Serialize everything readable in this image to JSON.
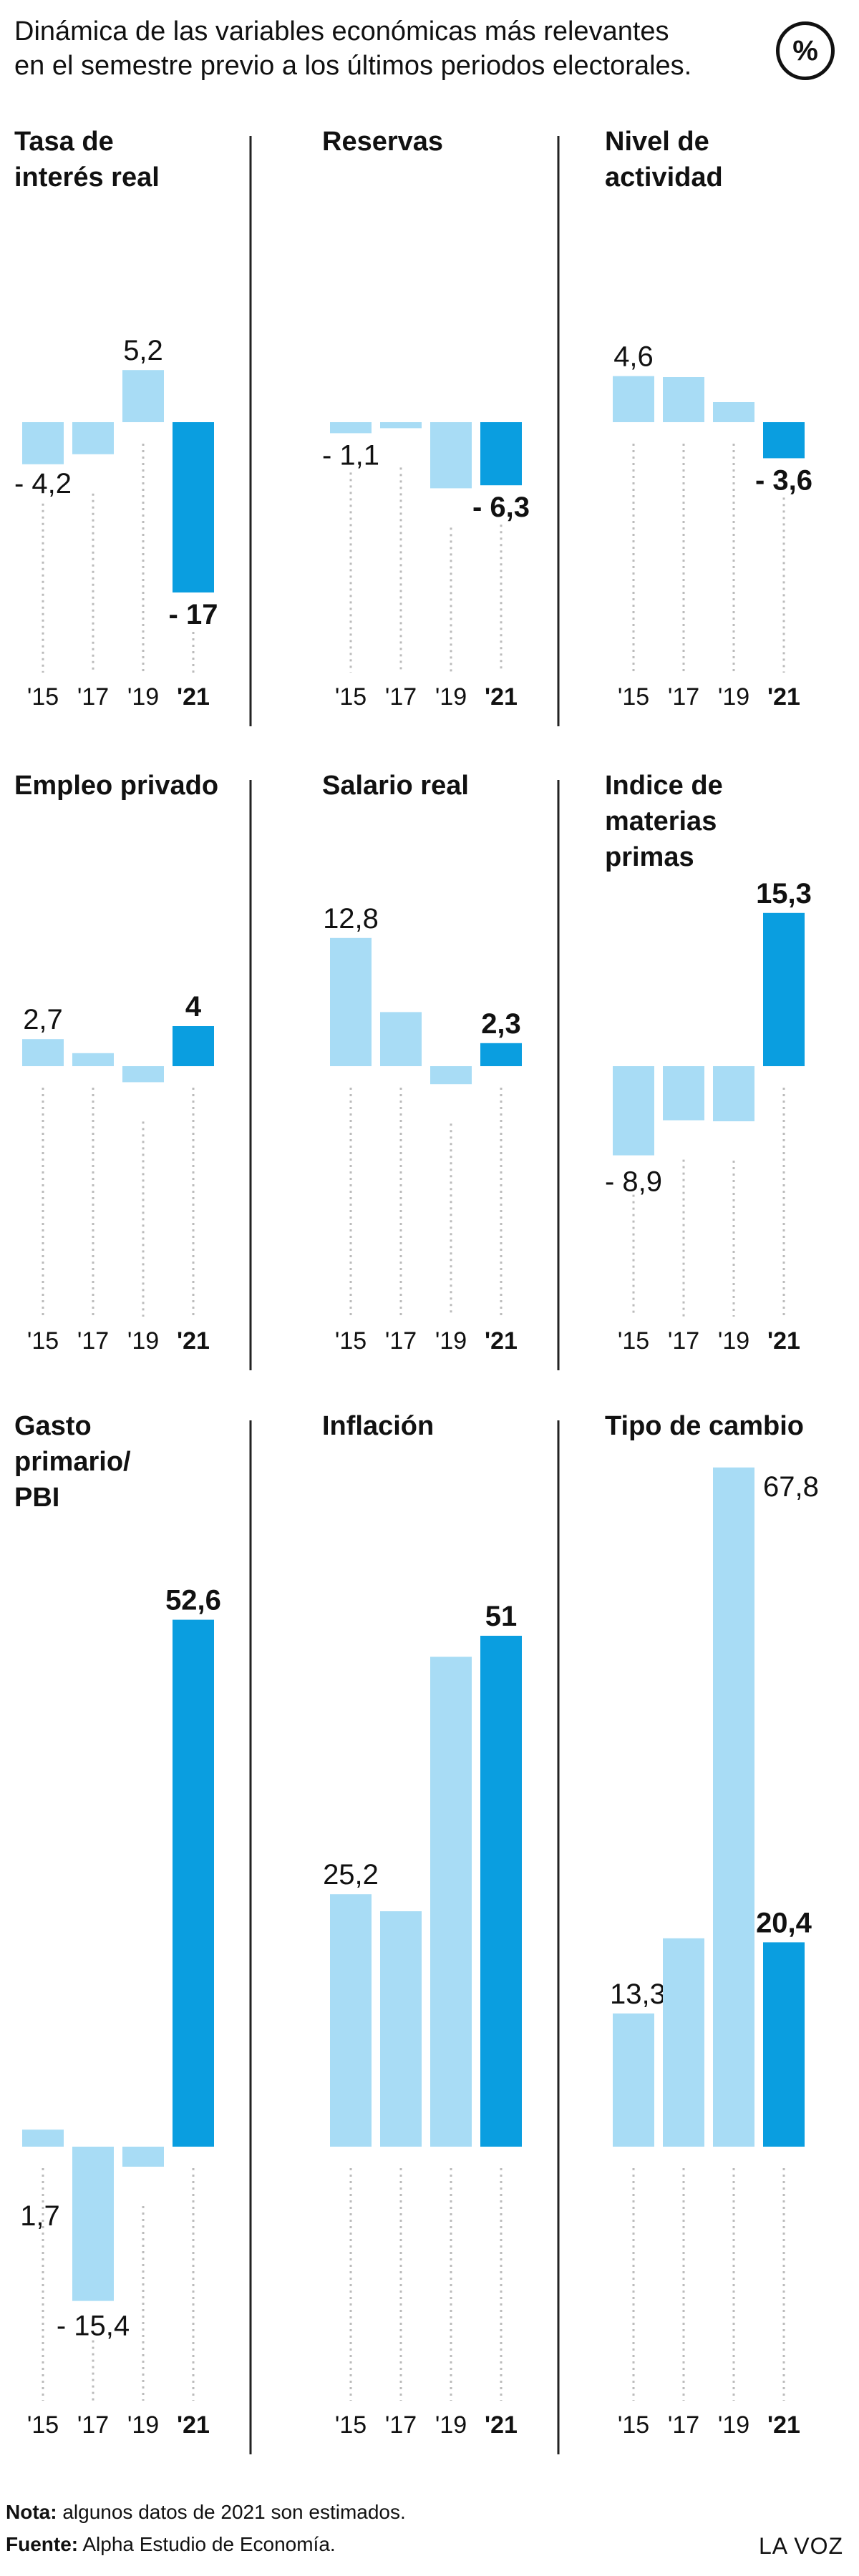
{
  "header": {
    "title_line1": "Dinámica de las variables económicas más relevantes",
    "title_line2": "en el semestre previo a los últimos periodos electorales.",
    "unit_badge": "%"
  },
  "colors": {
    "past": "#a8dcf5",
    "current": "#0a9ee0",
    "axis_dots": "#bbbbbb",
    "divider": "#222222"
  },
  "chart_data": [
    {
      "type": "bar",
      "title": "Tasa de\ninterés real",
      "categories": [
        "'15",
        "'17",
        "'19",
        "'21"
      ],
      "values": [
        -4.2,
        -3.2,
        5.2,
        -17
      ],
      "labels": [
        "- 4,2",
        "",
        "5,2",
        "- 17"
      ]
    },
    {
      "type": "bar",
      "title": "Reservas",
      "categories": [
        "'15",
        "'17",
        "'19",
        "'21"
      ],
      "values": [
        -1.1,
        -0.6,
        -6.6,
        -6.3
      ],
      "labels": [
        "- 1,1",
        "",
        "",
        "- 6,3"
      ]
    },
    {
      "type": "bar",
      "title": "Nivel de\nactividad",
      "categories": [
        "'15",
        "'17",
        "'19",
        "'21"
      ],
      "values": [
        4.6,
        4.5,
        2.0,
        -3.6
      ],
      "labels": [
        "4,6",
        "",
        "",
        "- 3,6"
      ]
    },
    {
      "type": "bar",
      "title": "Empleo privado",
      "categories": [
        "'15",
        "'17",
        "'19",
        "'21"
      ],
      "values": [
        2.7,
        1.3,
        -1.6,
        4
      ],
      "labels": [
        "2,7",
        "",
        "",
        "4"
      ]
    },
    {
      "type": "bar",
      "title": "Salario real",
      "categories": [
        "'15",
        "'17",
        "'19",
        "'21"
      ],
      "values": [
        12.8,
        5.4,
        -1.8,
        2.3
      ],
      "labels": [
        "12,8",
        "",
        "",
        "2,3"
      ]
    },
    {
      "type": "bar",
      "title": "Indice de\nmaterias\nprimas",
      "categories": [
        "'15",
        "'17",
        "'19",
        "'21"
      ],
      "values": [
        -8.9,
        -5.4,
        -5.5,
        15.3
      ],
      "labels": [
        "- 8,9",
        "",
        "",
        "15,3"
      ]
    },
    {
      "type": "bar",
      "title": "Gasto\nprimario/\nPBI",
      "categories": [
        "'15",
        "'17",
        "'19",
        "'21"
      ],
      "values": [
        1.7,
        -15.4,
        -2.0,
        52.6
      ],
      "labels": [
        "1,7",
        "- 15,4",
        "",
        "52,6"
      ]
    },
    {
      "type": "bar",
      "title": "Inflación",
      "categories": [
        "'15",
        "'17",
        "'19",
        "'21"
      ],
      "values": [
        25.2,
        23.5,
        48.9,
        51
      ],
      "labels": [
        "25,2",
        "",
        "",
        "51"
      ]
    },
    {
      "type": "bar",
      "title": "Tipo de cambio",
      "categories": [
        "'15",
        "'17",
        "'19",
        "'21"
      ],
      "values": [
        13.3,
        20.8,
        67.8,
        20.4
      ],
      "labels": [
        "13,3",
        "",
        "67,8",
        "20,4"
      ]
    }
  ],
  "footer": {
    "note_label": "Nota:",
    "note_text": " algunos datos de 2021 son estimados.",
    "source_label": "Fuente:",
    "source_text": " Alpha Estudio de Economía.",
    "brand": "LA VOZ"
  }
}
